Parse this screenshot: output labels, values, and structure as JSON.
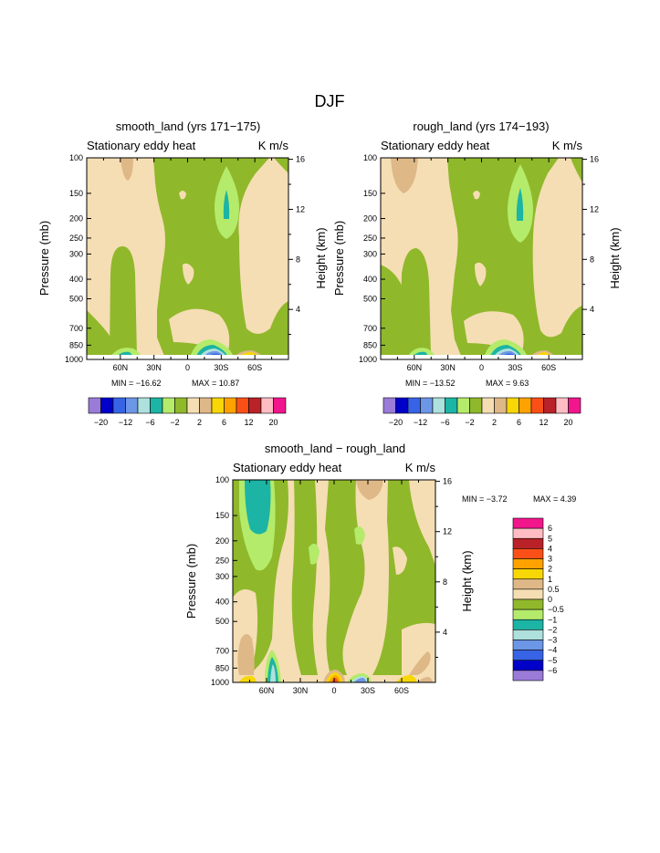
{
  "page_title": "DJF",
  "colors": {
    "pos6": "#f2168c",
    "pos5": "#ffbcc3",
    "pos4": "#b82228",
    "pos3": "#fa5017",
    "pos2": "#ffa200",
    "pos1": "#f7d705",
    "p05": "#deb887",
    "zpos": "#f5deb3",
    "zneg": "#90b82b",
    "n1": "#b4eb6a",
    "n2": "#1cb4a4",
    "n3": "#aee0dd",
    "n4": "#6c96e6",
    "n5": "#3764e4",
    "n6": "#0000c9",
    "n7": "#9a7bd8"
  },
  "chart_data": [
    {
      "type": "heatmap",
      "name": "smooth_land",
      "title": "smooth_land (yrs 171−175)",
      "subtitle_left": "Stationary eddy heat",
      "subtitle_right": "K m/s",
      "xlabel": "",
      "ylabel": "Pressure (mb)",
      "ylabel_right": "Height (km)",
      "x_ticks": [
        "60N",
        "30N",
        "0",
        "30S",
        "60S"
      ],
      "x_tick_values": [
        60,
        30,
        0,
        -30,
        -60
      ],
      "xlim": [
        90,
        -90
      ],
      "y_ticks": [
        100,
        150,
        200,
        250,
        300,
        400,
        500,
        700,
        850,
        1000
      ],
      "ylim": [
        1000,
        100
      ],
      "height_ticks": [
        4,
        8,
        12,
        16
      ],
      "min_label": "MIN = −16.62",
      "max_label": "MAX =  10.87",
      "colorbar_labels": [
        "−20",
        "−12",
        "−6",
        "−2",
        "2",
        "6",
        "12",
        "20"
      ],
      "colorbar_colors": [
        "#9a7bd8",
        "#0000c9",
        "#3764e4",
        "#6c96e6",
        "#aee0dd",
        "#1cb4a4",
        "#b4eb6a",
        "#90b82b",
        "#f5deb3",
        "#deb887",
        "#f7d705",
        "#ffa200",
        "#fa5017",
        "#b82228",
        "#ffbcc3",
        "#f2168c"
      ]
    },
    {
      "type": "heatmap",
      "name": "rough_land",
      "title": "rough_land (yrs 174−193)",
      "subtitle_left": "Stationary eddy heat",
      "subtitle_right": "K m/s",
      "xlabel": "",
      "ylabel": "Pressure (mb)",
      "ylabel_right": "Height (km)",
      "x_ticks": [
        "60N",
        "30N",
        "0",
        "30S",
        "60S"
      ],
      "x_tick_values": [
        60,
        30,
        0,
        -30,
        -60
      ],
      "xlim": [
        90,
        -90
      ],
      "y_ticks": [
        100,
        150,
        200,
        250,
        300,
        400,
        500,
        700,
        850,
        1000
      ],
      "ylim": [
        1000,
        100
      ],
      "height_ticks": [
        4,
        8,
        12,
        16
      ],
      "min_label": "MIN = −13.52",
      "max_label": "MAX =   9.63",
      "colorbar_labels": [
        "−20",
        "−12",
        "−6",
        "−2",
        "2",
        "6",
        "12",
        "20"
      ],
      "colorbar_colors": [
        "#9a7bd8",
        "#0000c9",
        "#3764e4",
        "#6c96e6",
        "#aee0dd",
        "#1cb4a4",
        "#b4eb6a",
        "#90b82b",
        "#f5deb3",
        "#deb887",
        "#f7d705",
        "#ffa200",
        "#fa5017",
        "#b82228",
        "#ffbcc3",
        "#f2168c"
      ]
    },
    {
      "type": "heatmap",
      "name": "difference",
      "title": "smooth_land − rough_land",
      "subtitle_left": "Stationary eddy heat",
      "subtitle_right": "K m/s",
      "xlabel": "",
      "ylabel": "Pressure (mb)",
      "ylabel_right": "Height (km)",
      "x_ticks": [
        "60N",
        "30N",
        "0",
        "30S",
        "60S"
      ],
      "x_tick_values": [
        60,
        30,
        0,
        -30,
        -60
      ],
      "xlim": [
        90,
        -90
      ],
      "y_ticks": [
        100,
        150,
        200,
        250,
        300,
        400,
        500,
        700,
        850,
        1000
      ],
      "ylim": [
        1000,
        100
      ],
      "height_ticks": [
        4,
        8,
        12,
        16
      ],
      "min_label": "MIN =   −3.72",
      "max_label": "MAX =    4.39",
      "colorbar_labels": [
        "6",
        "5",
        "4",
        "3",
        "2",
        "1",
        "0.5",
        "0",
        "−0.5",
        "−1",
        "−2",
        "−3",
        "−4",
        "−5",
        "−6"
      ],
      "colorbar_colors": [
        "#f2168c",
        "#ffbcc3",
        "#b82228",
        "#fa5017",
        "#ffa200",
        "#f7d705",
        "#deb887",
        "#f5deb3",
        "#90b82b",
        "#b4eb6a",
        "#1cb4a4",
        "#aee0dd",
        "#6c96e6",
        "#3764e4",
        "#0000c9",
        "#9a7bd8"
      ]
    }
  ]
}
